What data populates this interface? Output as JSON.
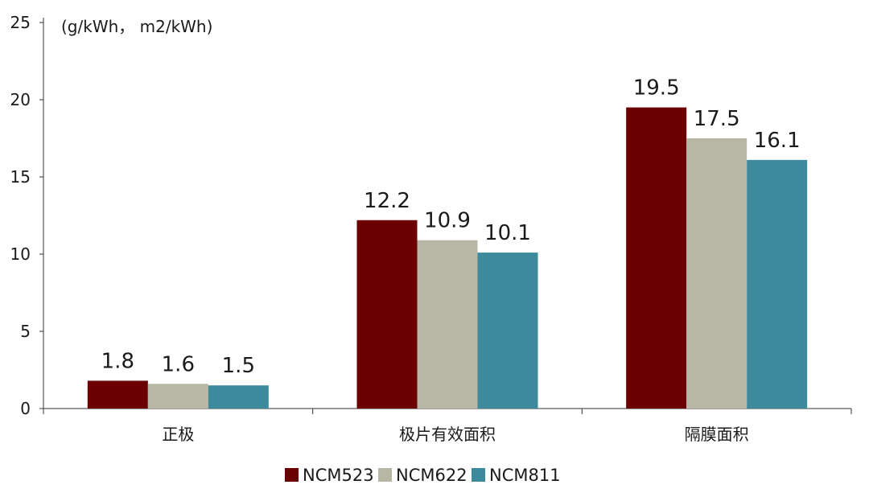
{
  "chart_data": {
    "type": "bar",
    "unit_label": "(g/kWh， m2/kWh)",
    "categories": [
      "正极",
      "极片有效面积",
      "隔膜面积"
    ],
    "series": [
      {
        "name": "NCM523",
        "values": [
          1.8,
          12.2,
          19.5
        ],
        "color": "#6b0000"
      },
      {
        "name": "NCM622",
        "values": [
          1.6,
          10.9,
          17.5
        ],
        "color": "#b8b7a5"
      },
      {
        "name": "NCM811",
        "values": [
          1.5,
          10.1,
          16.1
        ],
        "color": "#3d8a9c"
      }
    ],
    "data_labels": [
      [
        "1.8",
        "12.2",
        "19.5"
      ],
      [
        "1.6",
        "10.9",
        "17.5"
      ],
      [
        "1.5",
        "10.1",
        "16.1"
      ]
    ],
    "ylim": [
      0,
      25
    ],
    "yticks": [
      "0",
      "5",
      "10",
      "15",
      "20",
      "25"
    ],
    "grid": false,
    "legend_position": "bottom-center"
  }
}
